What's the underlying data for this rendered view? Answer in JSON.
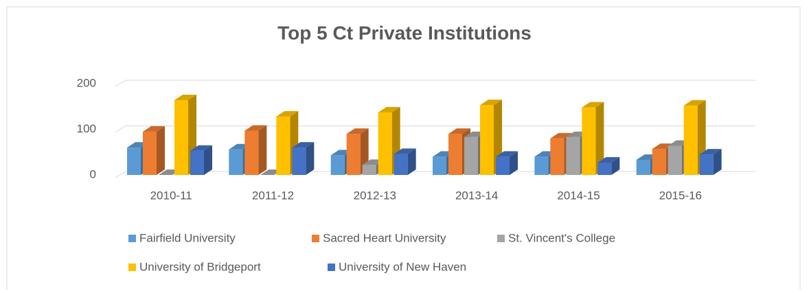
{
  "chart_data": {
    "type": "bar3d",
    "title": "Top 5 Ct Private Institutions",
    "categories": [
      "2010-11",
      "2011-12",
      "2012-13",
      "2013-14",
      "2014-15",
      "2015-16"
    ],
    "series": [
      {
        "name": "Fairfield University",
        "color": "#5b9bd5",
        "values": [
          60,
          56,
          43,
          40,
          40,
          33
        ]
      },
      {
        "name": "Sacred Heart University",
        "color": "#ed7d31",
        "values": [
          95,
          97,
          90,
          90,
          80,
          57
        ]
      },
      {
        "name": "St. Vincent's College",
        "color": "#a5a5a5",
        "values": [
          0,
          0,
          22,
          83,
          83,
          64
        ]
      },
      {
        "name": "University of Bridgeport",
        "color": "#ffc000",
        "values": [
          164,
          128,
          137,
          153,
          148,
          152
        ]
      },
      {
        "name": "University of New Haven",
        "color": "#4472c4",
        "values": [
          53,
          60,
          46,
          40,
          27,
          45
        ]
      }
    ],
    "ylim": [
      0,
      200
    ],
    "yticks": [
      0,
      100,
      200
    ],
    "grid": true
  }
}
